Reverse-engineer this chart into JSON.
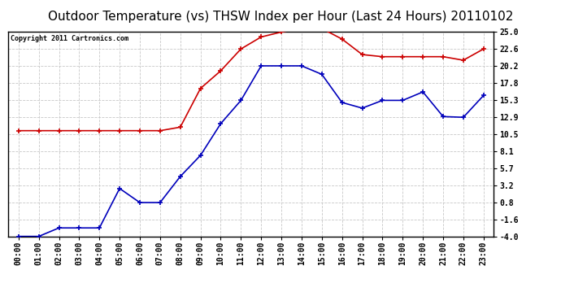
{
  "title": "Outdoor Temperature (vs) THSW Index per Hour (Last 24 Hours) 20110102",
  "copyright": "Copyright 2011 Cartronics.com",
  "hours": [
    "00:00",
    "01:00",
    "02:00",
    "03:00",
    "04:00",
    "05:00",
    "06:00",
    "07:00",
    "08:00",
    "09:00",
    "10:00",
    "11:00",
    "12:00",
    "13:00",
    "14:00",
    "15:00",
    "16:00",
    "17:00",
    "18:00",
    "19:00",
    "20:00",
    "21:00",
    "22:00",
    "23:00"
  ],
  "temp_blue": [
    -4.0,
    -4.0,
    -2.8,
    -2.8,
    -2.8,
    2.8,
    0.8,
    0.8,
    4.5,
    7.5,
    12.0,
    15.3,
    20.2,
    20.2,
    20.2,
    19.0,
    15.0,
    14.2,
    15.3,
    15.3,
    16.5,
    13.0,
    12.9,
    16.0
  ],
  "thsw_red": [
    11.0,
    11.0,
    11.0,
    11.0,
    11.0,
    11.0,
    11.0,
    11.0,
    11.5,
    17.0,
    19.5,
    22.6,
    24.3,
    25.0,
    25.5,
    25.5,
    24.0,
    21.8,
    21.5,
    21.5,
    21.5,
    21.5,
    21.0,
    22.6
  ],
  "yticks": [
    -4.0,
    -1.6,
    0.8,
    3.2,
    5.7,
    8.1,
    10.5,
    12.9,
    15.3,
    17.8,
    20.2,
    22.6,
    25.0
  ],
  "ylim": [
    -4.0,
    25.0
  ],
  "bg_color": "#ffffff",
  "plot_bg": "#ffffff",
  "grid_color": "#c8c8c8",
  "blue_color": "#0000bb",
  "red_color": "#cc0000",
  "title_fontsize": 11,
  "copyright_fontsize": 6,
  "tick_fontsize": 7,
  "border_color": "#000000"
}
